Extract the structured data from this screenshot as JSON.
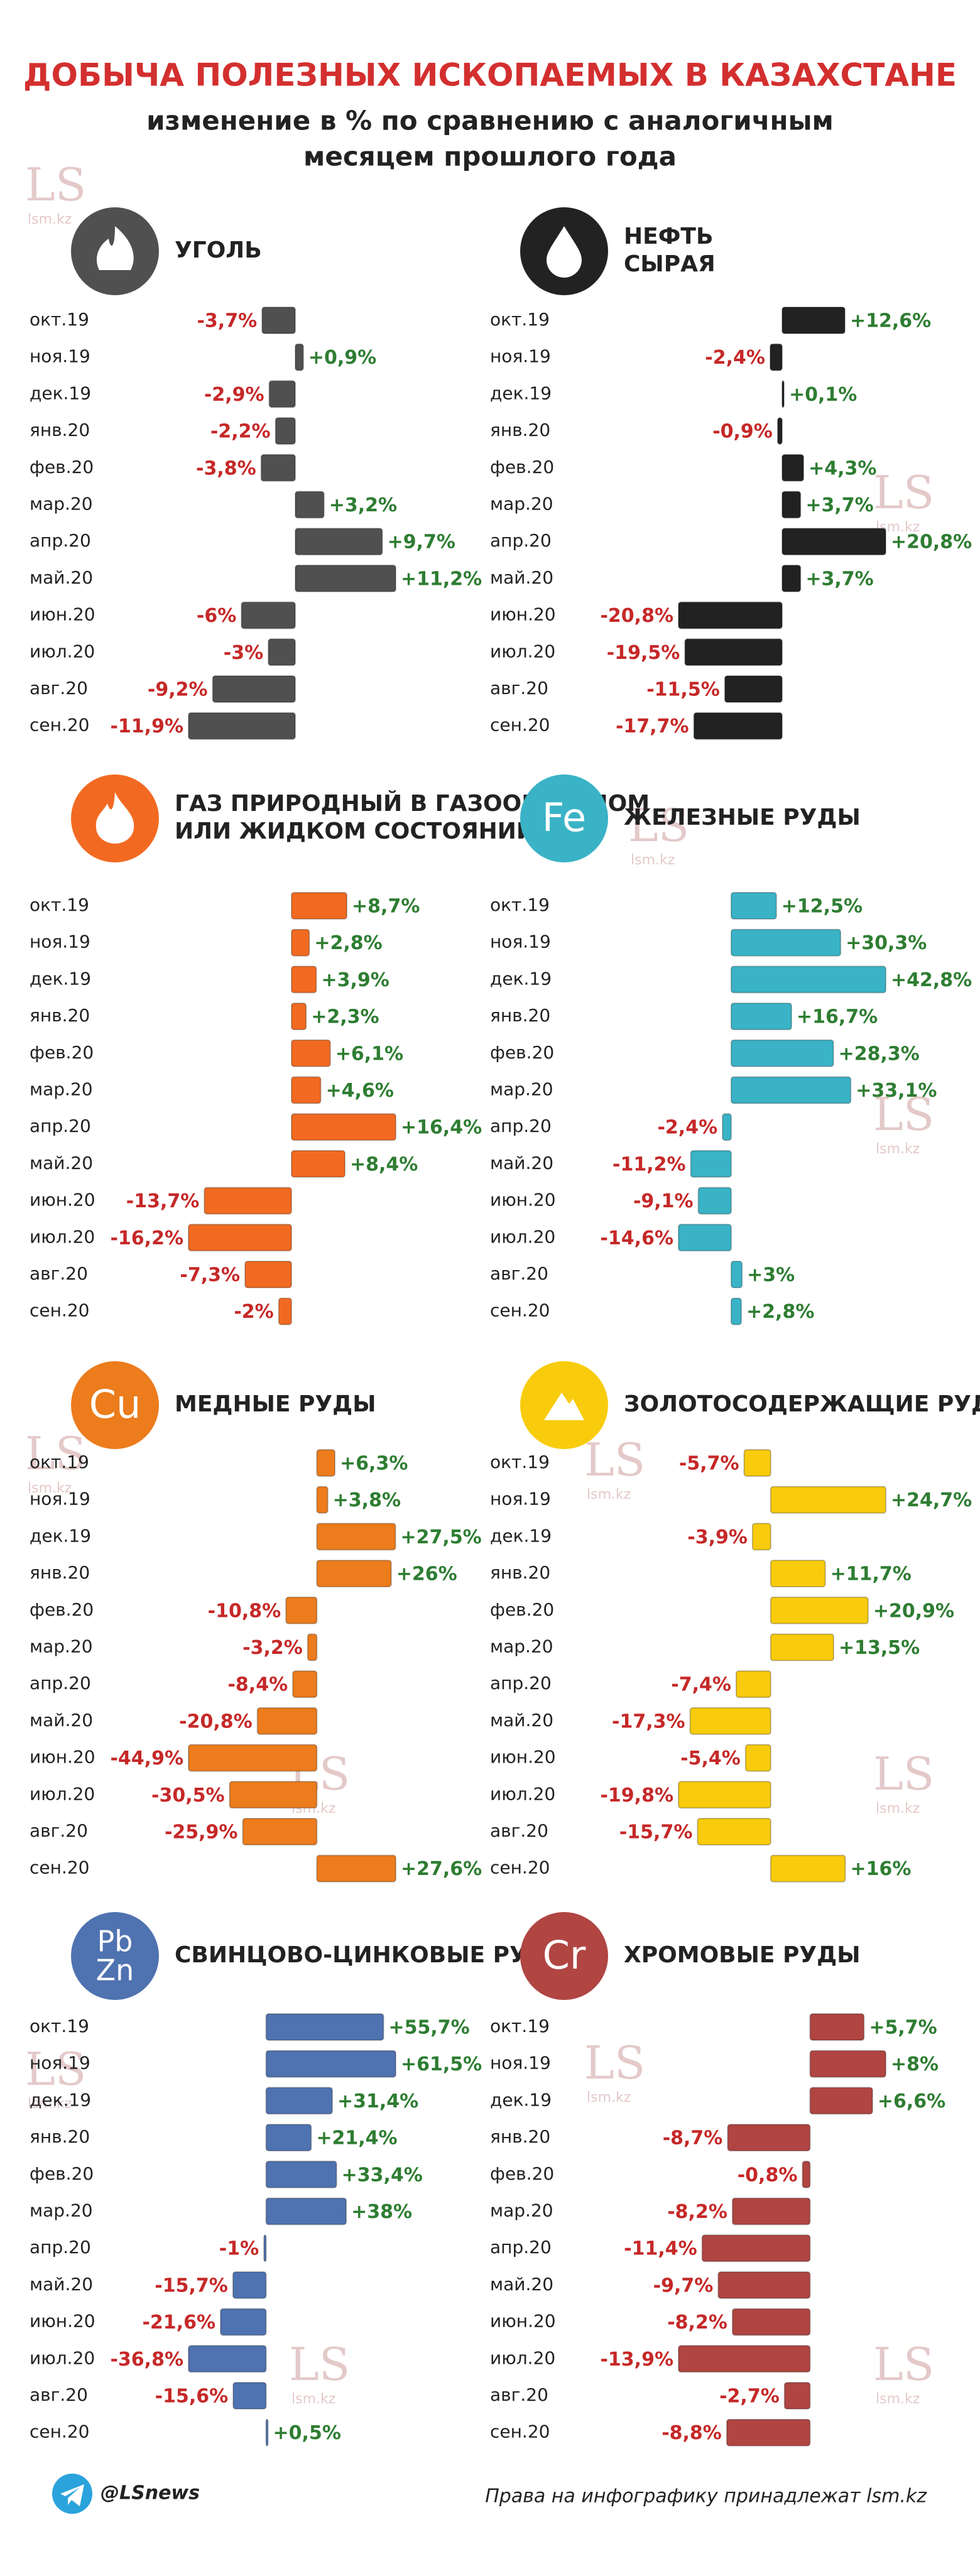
{
  "header": {
    "title": "ДОБЫЧА ПОЛЕЗНЫХ ИСКОПАЕМЫХ В КАЗАХСТАНЕ",
    "subtitle": [
      "изменение в % по сравнению с аналогичным",
      "месяцем прошлого года"
    ]
  },
  "watermark": {
    "logo": "LS",
    "site": "lsm.kz"
  },
  "footer": {
    "handle": "@LSnews",
    "rights": "Права на инфографику принадлежат lsm.kz"
  },
  "chart_data": [
    {
      "type": "bar",
      "orientation": "horizontal",
      "title": [
        "УГОЛЬ"
      ],
      "icon": "coal",
      "color": "#505050",
      "categories": [
        "окт.19",
        "ноя.19",
        "дек.19",
        "янв.20",
        "фев.20",
        "мар.20",
        "апр.20",
        "май.20",
        "июн.20",
        "июл.20",
        "авг.20",
        "сен.20"
      ],
      "values": [
        -3.7,
        0.9,
        -2.9,
        -2.2,
        -3.8,
        3.2,
        9.7,
        11.2,
        -6,
        -3,
        -9.2,
        -11.9
      ],
      "value_labels": [
        "-3,7%",
        "+0,9%",
        "-2,9%",
        "-2,2%",
        "-3,8%",
        "+3,2%",
        "+9,7%",
        "+11,2%",
        "-6%",
        "-3%",
        "-9,2%",
        "-11,9%"
      ]
    },
    {
      "type": "bar",
      "orientation": "horizontal",
      "title": [
        "НЕФТЬ",
        "СЫРАЯ"
      ],
      "icon": "oil",
      "color": "#222222",
      "categories": [
        "окт.19",
        "ноя.19",
        "дек.19",
        "янв.20",
        "фев.20",
        "мар.20",
        "апр.20",
        "май.20",
        "июн.20",
        "июл.20",
        "авг.20",
        "сен.20"
      ],
      "values": [
        12.6,
        -2.4,
        0.1,
        -0.9,
        4.3,
        3.7,
        20.8,
        3.7,
        -20.8,
        -19.5,
        -11.5,
        -17.7
      ],
      "value_labels": [
        "+12,6%",
        "-2,4%",
        "+0,1%",
        "-0,9%",
        "+4,3%",
        "+3,7%",
        "+20,8%",
        "+3,7%",
        "-20,8%",
        "-19,5%",
        "-11,5%",
        "-17,7%"
      ]
    },
    {
      "type": "bar",
      "orientation": "horizontal",
      "title": [
        "ГАЗ ПРИРОДНЫЙ В ГАЗООБРАЗНОМ",
        "ИЛИ ЖИДКОМ СОСТОЯНИИ"
      ],
      "icon": "fire",
      "color": "#f26a22",
      "categories": [
        "окт.19",
        "ноя.19",
        "дек.19",
        "янв.20",
        "фев.20",
        "мар.20",
        "апр.20",
        "май.20",
        "июн.20",
        "июл.20",
        "авг.20",
        "сен.20"
      ],
      "values": [
        8.7,
        2.8,
        3.9,
        2.3,
        6.1,
        4.6,
        16.4,
        8.4,
        -13.7,
        -16.2,
        -7.3,
        -2
      ],
      "value_labels": [
        "+8,7%",
        "+2,8%",
        "+3,9%",
        "+2,3%",
        "+6,1%",
        "+4,6%",
        "+16,4%",
        "+8,4%",
        "-13,7%",
        "-16,2%",
        "-7,3%",
        "-2%"
      ]
    },
    {
      "type": "bar",
      "orientation": "horizontal",
      "title": [
        "ЖЕЛЕЗНЫЕ РУДЫ"
      ],
      "icon_text": [
        "Fe"
      ],
      "color": "#3ab3c6",
      "categories": [
        "окт.19",
        "ноя.19",
        "дек.19",
        "янв.20",
        "фев.20",
        "мар.20",
        "апр.20",
        "май.20",
        "июн.20",
        "июл.20",
        "авг.20",
        "сен.20"
      ],
      "values": [
        12.5,
        30.3,
        42.8,
        16.7,
        28.3,
        33.1,
        -2.4,
        -11.2,
        -9.1,
        -14.6,
        3,
        2.8
      ],
      "value_labels": [
        "+12,5%",
        "+30,3%",
        "+42,8%",
        "+16,7%",
        "+28,3%",
        "+33,1%",
        "-2,4%",
        "-11,2%",
        "-9,1%",
        "-14,6%",
        "+3%",
        "+2,8%"
      ]
    },
    {
      "type": "bar",
      "orientation": "horizontal",
      "title": [
        "МЕДНЫЕ РУДЫ"
      ],
      "icon_text": [
        "Cu"
      ],
      "color": "#ec7c1c",
      "categories": [
        "окт.19",
        "ноя.19",
        "дек.19",
        "янв.20",
        "фев.20",
        "мар.20",
        "апр.20",
        "май.20",
        "июн.20",
        "июл.20",
        "авг.20",
        "сен.20"
      ],
      "values": [
        6.3,
        3.8,
        27.5,
        26,
        -10.8,
        -3.2,
        -8.4,
        -20.8,
        -44.9,
        -30.5,
        -25.9,
        27.6
      ],
      "value_labels": [
        "+6,3%",
        "+3,8%",
        "+27,5%",
        "+26%",
        "-10,8%",
        "-3,2%",
        "-8,4%",
        "-20,8%",
        "-44,9%",
        "-30,5%",
        "-25,9%",
        "+27,6%"
      ]
    },
    {
      "type": "bar",
      "orientation": "horizontal",
      "title": [
        "ЗОЛОТОСОДЕРЖАЩИЕ РУДЫ"
      ],
      "icon": "gold",
      "color": "#f8cc0c",
      "categories": [
        "окт.19",
        "ноя.19",
        "дек.19",
        "янв.20",
        "фев.20",
        "мар.20",
        "апр.20",
        "май.20",
        "июн.20",
        "июл.20",
        "авг.20",
        "сен.20"
      ],
      "values": [
        -5.7,
        24.7,
        -3.9,
        11.7,
        20.9,
        13.5,
        -7.4,
        -17.3,
        -5.4,
        -19.8,
        -15.7,
        16
      ],
      "value_labels": [
        "-5,7%",
        "+24,7%",
        "-3,9%",
        "+11,7%",
        "+20,9%",
        "+13,5%",
        "-7,4%",
        "-17,3%",
        "-5,4%",
        "-19,8%",
        "-15,7%",
        "+16%"
      ]
    },
    {
      "type": "bar",
      "orientation": "horizontal",
      "title": [
        "СВИНЦОВО-ЦИНКОВЫЕ РУДЫ"
      ],
      "icon_text": [
        "Pb",
        "Zn"
      ],
      "color": "#4f72b0",
      "categories": [
        "окт.19",
        "ноя.19",
        "дек.19",
        "янв.20",
        "фев.20",
        "мар.20",
        "апр.20",
        "май.20",
        "июн.20",
        "июл.20",
        "авг.20",
        "сен.20"
      ],
      "values": [
        55.7,
        61.5,
        31.4,
        21.4,
        33.4,
        38,
        -1,
        -15.7,
        -21.6,
        -36.8,
        -15.6,
        0.5
      ],
      "value_labels": [
        "+55,7%",
        "+61,5%",
        "+31,4%",
        "+21,4%",
        "+33,4%",
        "+38%",
        "-1%",
        "-15,7%",
        "-21,6%",
        "-36,8%",
        "-15,6%",
        "+0,5%"
      ]
    },
    {
      "type": "bar",
      "orientation": "horizontal",
      "title": [
        "ХРОМОВЫЕ РУДЫ"
      ],
      "icon_text": [
        "Cr"
      ],
      "color": "#b04542",
      "categories": [
        "окт.19",
        "ноя.19",
        "дек.19",
        "янв.20",
        "фев.20",
        "мар.20",
        "апр.20",
        "май.20",
        "июн.20",
        "июл.20",
        "авг.20",
        "сен.20"
      ],
      "values": [
        5.7,
        8,
        6.6,
        -8.7,
        -0.8,
        -8.2,
        -11.4,
        -9.7,
        -8.2,
        -13.9,
        -2.7,
        -8.8
      ],
      "value_labels": [
        "+5,7%",
        "+8%",
        "+6,6%",
        "-8,7%",
        "-0,8%",
        "-8,2%",
        "-11,4%",
        "-9,7%",
        "-8,2%",
        "-13,9%",
        "-2,7%",
        "-8,8%"
      ]
    }
  ]
}
